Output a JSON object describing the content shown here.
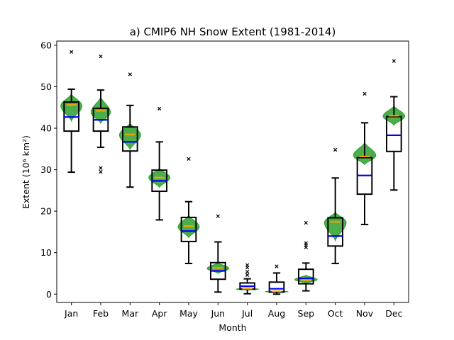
{
  "chart_data": {
    "type": "boxplot",
    "title": "a) CMIP6 NH Snow Extent (1981-2014)",
    "xlabel": "Month",
    "ylabel": "Extent (10⁶ km²)",
    "ylim": [
      -2,
      61
    ],
    "yticks": [
      0,
      10,
      20,
      30,
      40,
      50,
      60
    ],
    "categories": [
      "Jan",
      "Feb",
      "Mar",
      "Apr",
      "May",
      "Jun",
      "Jul",
      "Aug",
      "Sep",
      "Oct",
      "Nov",
      "Dec"
    ],
    "grid": false,
    "colors": {
      "box": "#000000",
      "median": "#0000ff",
      "violin": "#2ca02c",
      "obs_mean": "#ffa500"
    },
    "boxes": [
      {
        "month": "Jan",
        "whisker_low": 29.4,
        "q1": 39.3,
        "median": 42.7,
        "q3": 46.3,
        "whisker_high": 49.4,
        "outliers": [
          58.4
        ],
        "violin_min": 41.7,
        "violin_max": 48.3,
        "violin_peak": 45.4,
        "violin_half_width": 0.36,
        "obs_mean": 45.6
      },
      {
        "month": "Feb",
        "whisker_low": 35.4,
        "q1": 39.3,
        "median": 42.0,
        "q3": 44.8,
        "whisker_high": 49.2,
        "outliers": [
          57.3,
          30.4,
          29.5
        ],
        "violin_min": 41.2,
        "violin_max": 47.6,
        "violin_peak": 43.8,
        "violin_half_width": 0.33,
        "obs_mean": 44.2
      },
      {
        "month": "Mar",
        "whisker_low": 25.8,
        "q1": 34.5,
        "median": 36.7,
        "q3": 40.3,
        "whisker_high": 45.5,
        "outliers": [
          53.0
        ],
        "violin_min": 34.8,
        "violin_max": 41.3,
        "violin_peak": 38.4,
        "violin_half_width": 0.36,
        "obs_mean": 38.5
      },
      {
        "month": "Apr",
        "whisker_low": 17.9,
        "q1": 24.8,
        "median": 27.3,
        "q3": 29.9,
        "whisker_high": 36.7,
        "outliers": [
          44.7
        ],
        "violin_min": 25.7,
        "violin_max": 30.4,
        "violin_peak": 28.1,
        "violin_half_width": 0.36,
        "obs_mean": 28.1
      },
      {
        "month": "May",
        "whisker_low": 7.4,
        "q1": 12.7,
        "median": 15.2,
        "q3": 18.5,
        "whisker_high": 22.3,
        "outliers": [
          32.6
        ],
        "violin_min": 13.6,
        "violin_max": 19.1,
        "violin_peak": 16.2,
        "violin_half_width": 0.36,
        "obs_mean": 16.4
      },
      {
        "month": "Jun",
        "whisker_low": 0.5,
        "q1": 3.6,
        "median": 5.6,
        "q3": 7.6,
        "whisker_high": 12.6,
        "outliers": [
          18.8
        ],
        "violin_min": 5.0,
        "violin_max": 7.6,
        "violin_peak": 6.2,
        "violin_half_width": 0.37,
        "obs_mean": 6.3
      },
      {
        "month": "Jul",
        "whisker_low": 0.1,
        "q1": 1.2,
        "median": 1.9,
        "q3": 2.7,
        "whisker_high": 3.7,
        "outliers": [
          7.0,
          6.4,
          5.4,
          4.6
        ],
        "violin_min": 1.0,
        "violin_max": 1.5,
        "violin_peak": 1.2,
        "violin_half_width": 0.38,
        "obs_mean": 1.3
      },
      {
        "month": "Aug",
        "whisker_low": 0.0,
        "q1": 0.5,
        "median": 1.3,
        "q3": 2.9,
        "whisker_high": 5.1,
        "outliers": [
          6.7
        ],
        "violin_min": 0.4,
        "violin_max": 0.8,
        "violin_peak": 0.6,
        "violin_half_width": 0.38,
        "obs_mean": 0.7
      },
      {
        "month": "Sep",
        "whisker_low": 0.8,
        "q1": 2.5,
        "median": 3.8,
        "q3": 6.0,
        "whisker_high": 7.5,
        "outliers": [
          17.2,
          12.3,
          11.8,
          11.3
        ],
        "violin_min": 2.6,
        "violin_max": 4.6,
        "violin_peak": 3.5,
        "violin_half_width": 0.38,
        "obs_mean": 3.4
      },
      {
        "month": "Oct",
        "whisker_low": 7.4,
        "q1": 11.6,
        "median": 14.0,
        "q3": 18.4,
        "whisker_high": 28.0,
        "outliers": [
          34.8
        ],
        "violin_min": 12.8,
        "violin_max": 19.8,
        "violin_peak": 17.3,
        "violin_half_width": 0.37,
        "obs_mean": 17.4
      },
      {
        "month": "Nov",
        "whisker_low": 16.8,
        "q1": 24.1,
        "median": 28.6,
        "q3": 32.9,
        "whisker_high": 41.3,
        "outliers": [
          48.3
        ],
        "violin_min": 31.2,
        "violin_max": 36.6,
        "violin_peak": 33.4,
        "violin_half_width": 0.38,
        "obs_mean": 33.2
      },
      {
        "month": "Dec",
        "whisker_low": 25.1,
        "q1": 34.4,
        "median": 38.3,
        "q3": 42.8,
        "whisker_high": 47.6,
        "outliers": [
          56.2
        ],
        "violin_min": 40.7,
        "violin_max": 45.4,
        "violin_peak": 42.9,
        "violin_half_width": 0.37,
        "obs_mean": 43.0
      }
    ]
  }
}
